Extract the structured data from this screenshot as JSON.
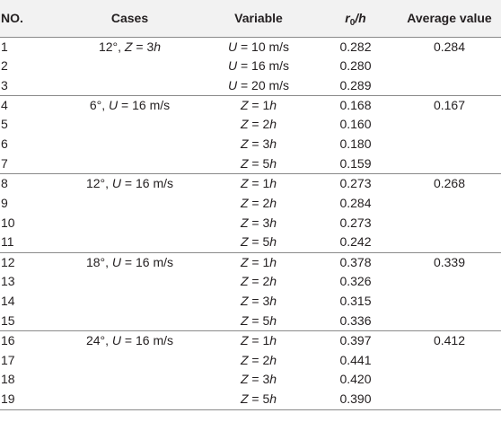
{
  "header": {
    "no": "NO.",
    "cases": "Cases",
    "variable": "Variable",
    "ratio_r": "r",
    "ratio_sub": "0",
    "ratio_h": "/h",
    "average": "Average value"
  },
  "groups": [
    {
      "case_angle": "12°, ",
      "case_var": "Z",
      "case_eq": " = 3",
      "case_unit": "h",
      "average": "0.284",
      "rows": [
        {
          "no": "1",
          "var": "U",
          "eq": " = 10 m/s",
          "unit": "",
          "value": "0.282"
        },
        {
          "no": "2",
          "var": "U",
          "eq": " = 16 m/s",
          "unit": "",
          "value": "0.280"
        },
        {
          "no": "3",
          "var": "U",
          "eq": " = 20 m/s",
          "unit": "",
          "value": "0.289"
        }
      ]
    },
    {
      "case_angle": "6°, ",
      "case_var": "U",
      "case_eq": " = 16 m/s",
      "case_unit": "",
      "average": "0.167",
      "rows": [
        {
          "no": "4",
          "var": "Z",
          "eq": " = 1",
          "unit": "h",
          "value": "0.168"
        },
        {
          "no": "5",
          "var": "Z",
          "eq": " = 2",
          "unit": "h",
          "value": "0.160"
        },
        {
          "no": "6",
          "var": "Z",
          "eq": " = 3",
          "unit": "h",
          "value": "0.180"
        },
        {
          "no": "7",
          "var": "Z",
          "eq": " = 5",
          "unit": "h",
          "value": "0.159"
        }
      ]
    },
    {
      "case_angle": "12°, ",
      "case_var": "U",
      "case_eq": " = 16 m/s",
      "case_unit": "",
      "average": "0.268",
      "rows": [
        {
          "no": "8",
          "var": "Z",
          "eq": " = 1",
          "unit": "h",
          "value": "0.273"
        },
        {
          "no": "9",
          "var": "Z",
          "eq": " = 2",
          "unit": "h",
          "value": "0.284"
        },
        {
          "no": "10",
          "var": "Z",
          "eq": " = 3",
          "unit": "h",
          "value": "0.273"
        },
        {
          "no": "11",
          "var": "Z",
          "eq": " = 5",
          "unit": "h",
          "value": "0.242"
        }
      ]
    },
    {
      "case_angle": "18°, ",
      "case_var": "U",
      "case_eq": " = 16 m/s",
      "case_unit": "",
      "average": "0.339",
      "rows": [
        {
          "no": "12",
          "var": "Z",
          "eq": " = 1",
          "unit": "h",
          "value": "0.378"
        },
        {
          "no": "13",
          "var": "Z",
          "eq": " = 2",
          "unit": "h",
          "value": "0.326"
        },
        {
          "no": "14",
          "var": "Z",
          "eq": " = 3",
          "unit": "h",
          "value": "0.315"
        },
        {
          "no": "15",
          "var": "Z",
          "eq": " = 5",
          "unit": "h",
          "value": "0.336"
        }
      ]
    },
    {
      "case_angle": "24°, ",
      "case_var": "U",
      "case_eq": " = 16 m/s",
      "case_unit": "",
      "average": "0.412",
      "rows": [
        {
          "no": "16",
          "var": "Z",
          "eq": " = 1",
          "unit": "h",
          "value": "0.397"
        },
        {
          "no": "17",
          "var": "Z",
          "eq": " = 2",
          "unit": "h",
          "value": "0.441"
        },
        {
          "no": "18",
          "var": "Z",
          "eq": " = 3",
          "unit": "h",
          "value": "0.420"
        },
        {
          "no": "19",
          "var": "Z",
          "eq": " = 5",
          "unit": "h",
          "value": "0.390"
        }
      ]
    }
  ]
}
